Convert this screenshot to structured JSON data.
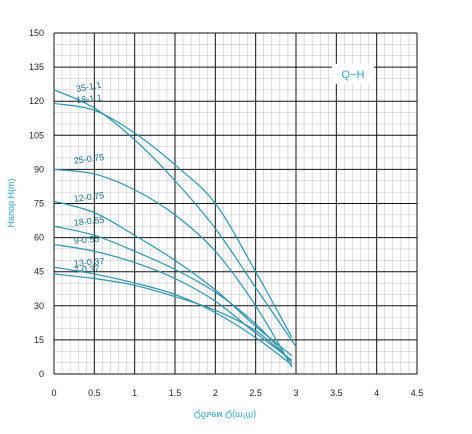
{
  "chart_data": {
    "type": "line",
    "title": "",
    "legend_box": "Q−H",
    "xlabel": "Qбъем Q(m³/h)",
    "ylabel": "Напор H(m)",
    "xlim": [
      0,
      4.5
    ],
    "ylim": [
      0,
      150
    ],
    "x_ticks": [
      "0",
      "0.5",
      "1",
      "1.5",
      "2",
      "2.5",
      "3",
      "3.5",
      "4",
      "4.5"
    ],
    "y_ticks": [
      "0",
      "15",
      "30",
      "45",
      "60",
      "75",
      "90",
      "105",
      "120",
      "135",
      "150"
    ],
    "grid": true,
    "colors": {
      "curve": "#2b93ad",
      "label": "#1a6f8a",
      "axis_text": "#2a9fbd",
      "grid_major": "#111111",
      "grid_minor": "#bdbdbd"
    },
    "series": [
      {
        "name": "35-1.1",
        "x": [
          0,
          0.5,
          1,
          1.5,
          2,
          2.5,
          3
        ],
        "y": [
          125,
          117,
          103,
          85,
          64,
          38,
          12
        ]
      },
      {
        "name": "18-1.1",
        "x": [
          0,
          0.5,
          1,
          1.5,
          2,
          2.5,
          2.95
        ],
        "y": [
          119,
          116,
          106,
          92,
          75,
          45,
          16
        ]
      },
      {
        "name": "25-0.75",
        "x": [
          0,
          0.5,
          1,
          1.5,
          2,
          2.5,
          2.95
        ],
        "y": [
          90,
          88,
          81,
          70,
          54,
          30,
          3
        ]
      },
      {
        "name": "12-0.75",
        "x": [
          0,
          0.5,
          1,
          1.5,
          2,
          2.5,
          2.95
        ],
        "y": [
          76,
          71,
          61,
          50,
          37,
          21,
          8
        ]
      },
      {
        "name": "18-0.55",
        "x": [
          0,
          0.5,
          1,
          1.5,
          2,
          2.5,
          2.95
        ],
        "y": [
          65,
          61,
          54,
          46,
          36,
          22,
          5
        ]
      },
      {
        "name": "9-0.55",
        "x": [
          0,
          0.5,
          1,
          1.5,
          2,
          2.5,
          2.95
        ],
        "y": [
          57,
          54,
          49,
          42,
          32,
          18,
          6
        ]
      },
      {
        "name": "13-0.37",
        "x": [
          0,
          0.5,
          1,
          1.5,
          2,
          2.5,
          2.95
        ],
        "y": [
          47,
          44,
          40,
          35,
          27,
          16,
          4
        ]
      },
      {
        "name": "7-0.37",
        "x": [
          0,
          0.5,
          1,
          1.5,
          2,
          2.5,
          2.9
        ],
        "y": [
          44,
          42,
          39,
          34,
          28,
          19,
          7
        ]
      }
    ]
  }
}
